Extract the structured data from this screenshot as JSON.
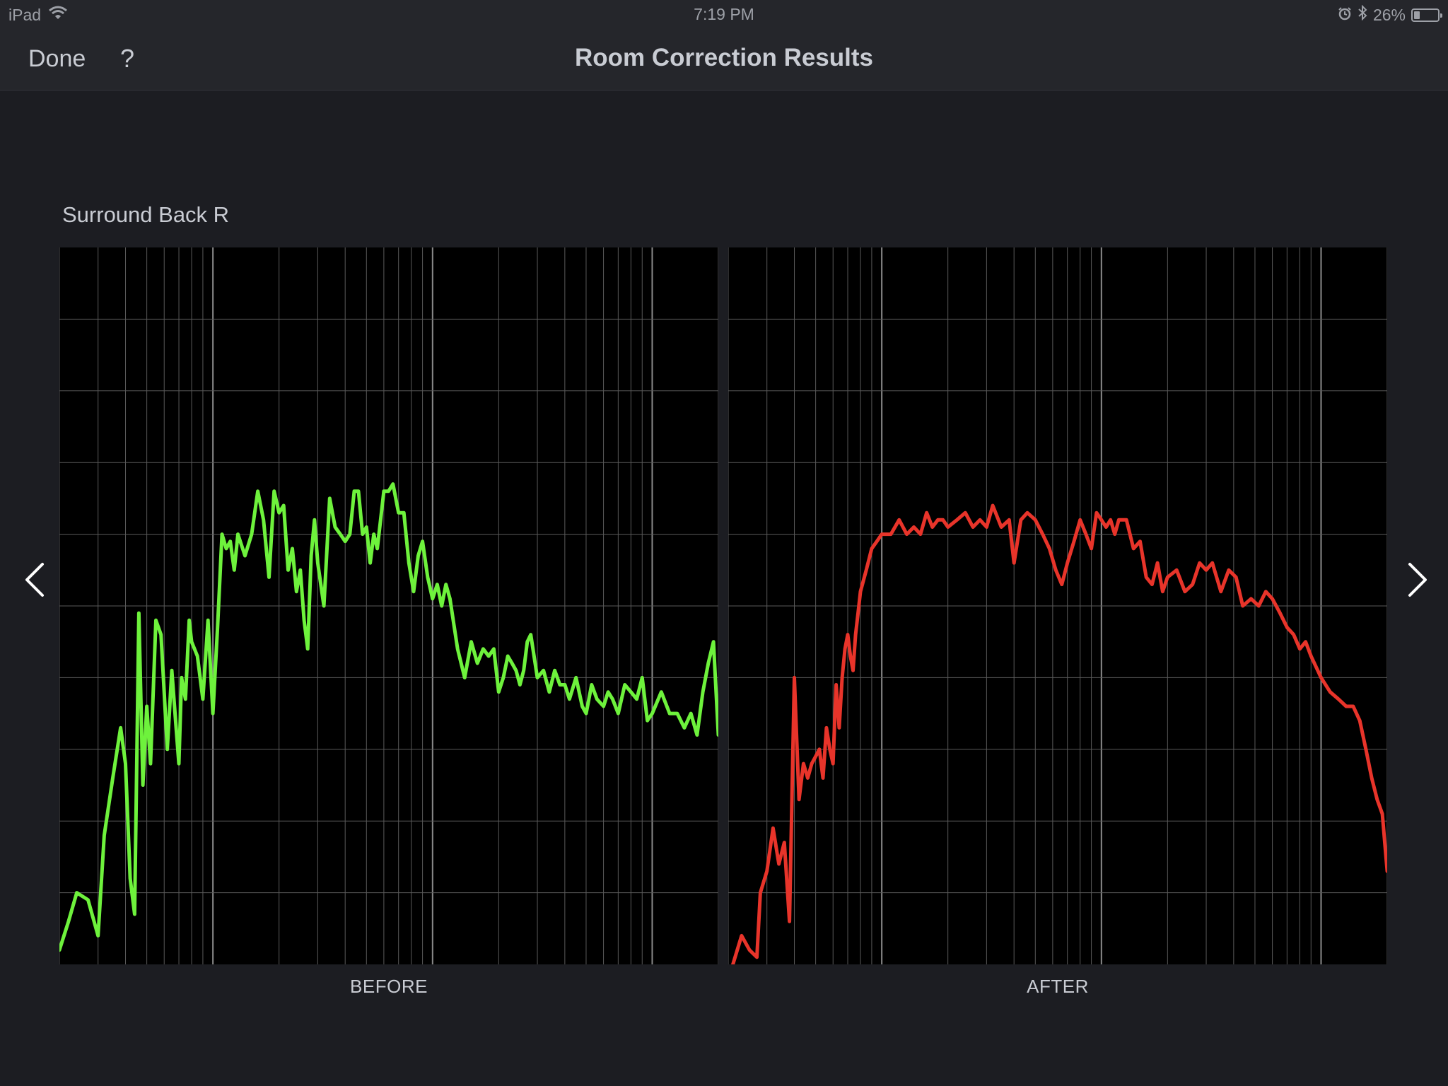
{
  "status_bar": {
    "device": "iPad",
    "time": "7:19 PM",
    "battery_text": "26%",
    "battery_level": 0.26,
    "icons": [
      "wifi-icon",
      "alarm-icon",
      "bluetooth-icon",
      "battery-icon"
    ]
  },
  "nav": {
    "done_label": "Done",
    "help_label": "?",
    "title": "Room Correction Results"
  },
  "speaker": {
    "name": "Surround Back R"
  },
  "panels": {
    "before_label": "BEFORE",
    "after_label": "AFTER"
  },
  "arrows": {
    "prev_icon": "chevron-left-icon",
    "next_icon": "chevron-right-icon"
  },
  "colors": {
    "before_curve": "#6ef23c",
    "after_curve": "#e8342a",
    "plot_background": "#000000",
    "grid_line": "#5a5a5a",
    "grid_major": "#8a8a8a",
    "app_background": "#1c1d22"
  },
  "chart_data": [
    {
      "type": "line",
      "title": "BEFORE",
      "x_scale": "log",
      "xlim": [
        20,
        20000
      ],
      "ylim": [
        0,
        10
      ],
      "grid": true,
      "series": [
        {
          "x": [
            20,
            22,
            24,
            27,
            30,
            32,
            35,
            38,
            40,
            42,
            44,
            46,
            48,
            50,
            52,
            55,
            58,
            60,
            62,
            65,
            68,
            70,
            72,
            75,
            78,
            80,
            85,
            90,
            95,
            100,
            105,
            110,
            115,
            120,
            125,
            130,
            140,
            150,
            160,
            170,
            180,
            190,
            200,
            210,
            220,
            230,
            240,
            250,
            260,
            270,
            280,
            290,
            300,
            320,
            340,
            360,
            380,
            400,
            420,
            440,
            460,
            480,
            500,
            520,
            540,
            560,
            580,
            600,
            630,
            660,
            700,
            740,
            780,
            820,
            860,
            900,
            950,
            1000,
            1050,
            1100,
            1150,
            1200,
            1300,
            1400,
            1500,
            1600,
            1700,
            1800,
            1900,
            2000,
            2100,
            2200,
            2300,
            2400,
            2500,
            2600,
            2700,
            2800,
            3000,
            3200,
            3400,
            3600,
            3800,
            4000,
            4200,
            4500,
            4800,
            5000,
            5300,
            5600,
            6000,
            6300,
            6600,
            7000,
            7500,
            8000,
            8500,
            9000,
            9500,
            10000,
            11000,
            12000,
            13000,
            14000,
            15000,
            16000,
            17000,
            18000,
            19000,
            20000
          ],
          "values": [
            0.2,
            0.6,
            1.0,
            0.9,
            0.4,
            1.8,
            2.6,
            3.3,
            2.8,
            1.2,
            0.7,
            4.9,
            2.5,
            3.6,
            2.8,
            4.8,
            4.6,
            3.8,
            3.0,
            4.1,
            3.3,
            2.8,
            4.0,
            3.7,
            4.8,
            4.5,
            4.3,
            3.7,
            4.8,
            3.5,
            4.7,
            6.0,
            5.8,
            5.9,
            5.5,
            6.0,
            5.7,
            6.0,
            6.6,
            6.2,
            5.4,
            6.6,
            6.3,
            6.4,
            5.5,
            5.8,
            5.2,
            5.5,
            4.8,
            4.4,
            5.7,
            6.2,
            5.6,
            5.0,
            6.5,
            6.1,
            6.0,
            5.9,
            6.0,
            6.6,
            6.6,
            6.0,
            6.1,
            5.6,
            6.0,
            5.8,
            6.2,
            6.6,
            6.6,
            6.7,
            6.3,
            6.3,
            5.6,
            5.2,
            5.7,
            5.9,
            5.4,
            5.1,
            5.3,
            5.0,
            5.3,
            5.1,
            4.4,
            4.0,
            4.5,
            4.2,
            4.4,
            4.3,
            4.4,
            3.8,
            4.0,
            4.3,
            4.2,
            4.1,
            3.9,
            4.1,
            4.5,
            4.6,
            4.0,
            4.1,
            3.8,
            4.1,
            3.9,
            3.9,
            3.7,
            4.0,
            3.6,
            3.5,
            3.9,
            3.7,
            3.6,
            3.8,
            3.7,
            3.5,
            3.9,
            3.8,
            3.7,
            4.0,
            3.4,
            3.5,
            3.8,
            3.5,
            3.5,
            3.3,
            3.5,
            3.2,
            3.8,
            4.2,
            4.5,
            3.2
          ]
        }
      ]
    },
    {
      "type": "line",
      "title": "AFTER",
      "x_scale": "log",
      "xlim": [
        20,
        20000
      ],
      "ylim": [
        0,
        10
      ],
      "grid": true,
      "series": [
        {
          "x": [
            21,
            23,
            25,
            27,
            28,
            30,
            32,
            34,
            36,
            38,
            40,
            42,
            44,
            46,
            48,
            50,
            52,
            54,
            56,
            58,
            60,
            62,
            64,
            66,
            68,
            70,
            72,
            74,
            76,
            78,
            80,
            85,
            90,
            95,
            100,
            110,
            120,
            130,
            140,
            150,
            160,
            170,
            180,
            190,
            200,
            220,
            240,
            260,
            280,
            300,
            320,
            350,
            380,
            400,
            430,
            460,
            500,
            540,
            580,
            620,
            660,
            700,
            750,
            800,
            850,
            900,
            950,
            1000,
            1050,
            1100,
            1150,
            1200,
            1300,
            1400,
            1500,
            1600,
            1700,
            1800,
            1900,
            2000,
            2200,
            2400,
            2600,
            2800,
            3000,
            3200,
            3500,
            3800,
            4100,
            4400,
            4800,
            5200,
            5600,
            6000,
            6500,
            7000,
            7500,
            8000,
            8500,
            9000,
            10000,
            11000,
            12000,
            13000,
            14000,
            15000,
            16000,
            17000,
            18000,
            19000,
            20000
          ],
          "values": [
            0.0,
            0.4,
            0.2,
            0.1,
            1.0,
            1.3,
            1.9,
            1.4,
            1.7,
            0.6,
            4.0,
            2.3,
            2.8,
            2.6,
            2.8,
            2.9,
            3.0,
            2.6,
            3.3,
            3.0,
            2.8,
            3.9,
            3.3,
            4.0,
            4.4,
            4.6,
            4.3,
            4.1,
            4.6,
            4.9,
            5.2,
            5.5,
            5.8,
            5.9,
            6.0,
            6.0,
            6.2,
            6.0,
            6.1,
            6.0,
            6.3,
            6.1,
            6.2,
            6.2,
            6.1,
            6.2,
            6.3,
            6.1,
            6.2,
            6.1,
            6.4,
            6.1,
            6.2,
            5.6,
            6.2,
            6.3,
            6.2,
            6.0,
            5.8,
            5.5,
            5.3,
            5.6,
            5.9,
            6.2,
            6.0,
            5.8,
            6.3,
            6.2,
            6.1,
            6.2,
            6.0,
            6.2,
            6.2,
            5.8,
            5.9,
            5.4,
            5.3,
            5.6,
            5.2,
            5.4,
            5.5,
            5.2,
            5.3,
            5.6,
            5.5,
            5.6,
            5.2,
            5.5,
            5.4,
            5.0,
            5.1,
            5.0,
            5.2,
            5.1,
            4.9,
            4.7,
            4.6,
            4.4,
            4.5,
            4.3,
            4.0,
            3.8,
            3.7,
            3.6,
            3.6,
            3.4,
            3.0,
            2.6,
            2.3,
            2.1,
            1.3
          ]
        }
      ]
    }
  ]
}
